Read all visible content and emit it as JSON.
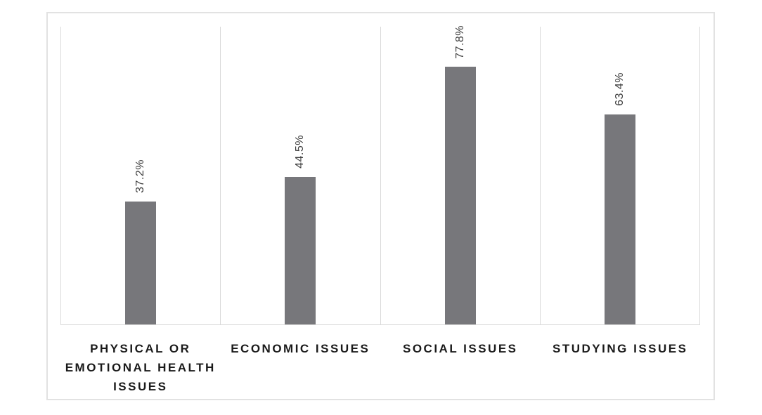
{
  "chart_data": {
    "type": "bar",
    "title": "",
    "xlabel": "",
    "ylabel": "",
    "categories": [
      "PHYSICAL OR EMOTIONAL HEALTH ISSUES",
      "ECONOMIC ISSUES",
      "SOCIAL ISSUES",
      "STUDYING ISSUES"
    ],
    "values": [
      37.2,
      44.5,
      77.8,
      63.4
    ],
    "data_labels": [
      "37.2%",
      "44.5%",
      "77.8%",
      "63.4%"
    ],
    "ylim": [
      0,
      90
    ],
    "grid": "vertical-category-separators",
    "legend_position": "none",
    "data_label_rotation_deg": 90,
    "colors": {
      "bar": "#77777B",
      "gridline": "#d9d9d9",
      "container_border": "#e2e2e2",
      "data_label_text": "#3d3d3d",
      "category_label_text": "#1a1a1a",
      "background": "#ffffff"
    }
  }
}
